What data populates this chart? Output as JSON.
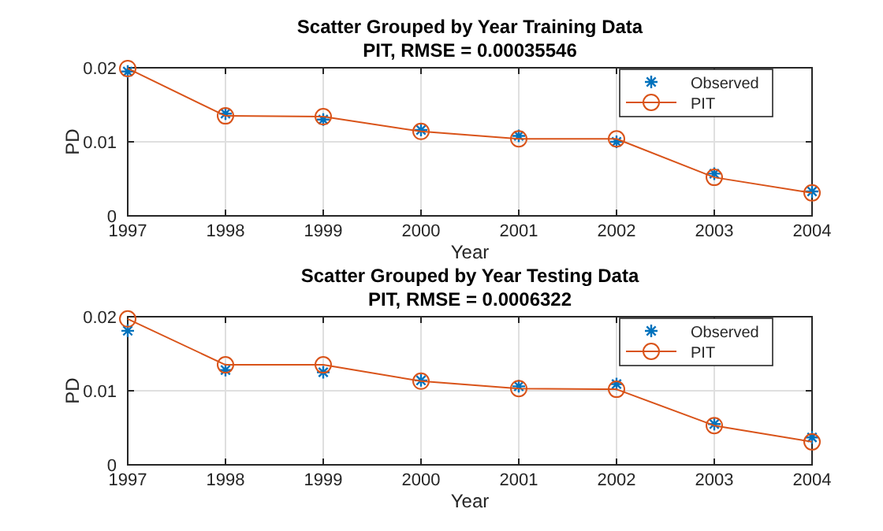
{
  "chart_data": [
    {
      "type": "line",
      "title": "Scatter Grouped by Year Training Data",
      "subtitle": "PIT, RMSE = 0.00035546",
      "xlabel": "Year",
      "ylabel": "PD",
      "x": [
        1997,
        1998,
        1999,
        2000,
        2001,
        2002,
        2003,
        2004
      ],
      "xlim": [
        1997,
        2004
      ],
      "xticks": [
        1997,
        1998,
        1999,
        2000,
        2001,
        2002,
        2003,
        2004
      ],
      "ylim": [
        0,
        0.02
      ],
      "yticks": [
        0,
        0.01,
        0.02
      ],
      "grid": true,
      "legend": "top right",
      "series": [
        {
          "name": "Observed",
          "type": "scatter",
          "marker": "cross",
          "color": "#0072bd",
          "values": [
            0.0195,
            0.0138,
            0.013,
            0.0116,
            0.0108,
            0.01,
            0.0057,
            0.0033
          ]
        },
        {
          "name": "PIT",
          "type": "line",
          "marker": "circle",
          "color": "#d95319",
          "values": [
            0.0199,
            0.0135,
            0.0134,
            0.0114,
            0.0104,
            0.0104,
            0.0052,
            0.0031
          ]
        }
      ]
    },
    {
      "type": "line",
      "title": "Scatter Grouped by Year Testing Data",
      "subtitle": "PIT, RMSE = 0.0006322",
      "xlabel": "Year",
      "ylabel": "PD",
      "x": [
        1997,
        1998,
        1999,
        2000,
        2001,
        2002,
        2003,
        2004
      ],
      "xlim": [
        1997,
        2004
      ],
      "xticks": [
        1997,
        1998,
        1999,
        2000,
        2001,
        2002,
        2003,
        2004
      ],
      "ylim": [
        0,
        0.02
      ],
      "yticks": [
        0,
        0.01,
        0.02
      ],
      "grid": true,
      "legend": "top right",
      "series": [
        {
          "name": "Observed",
          "type": "scatter",
          "marker": "cross",
          "color": "#0072bd",
          "values": [
            0.0181,
            0.0128,
            0.0125,
            0.0114,
            0.0106,
            0.0109,
            0.0055,
            0.0037
          ]
        },
        {
          "name": "PIT",
          "type": "line",
          "marker": "circle",
          "color": "#d95319",
          "values": [
            0.0197,
            0.0135,
            0.0135,
            0.0113,
            0.0103,
            0.0102,
            0.0053,
            0.0031
          ]
        }
      ]
    }
  ]
}
